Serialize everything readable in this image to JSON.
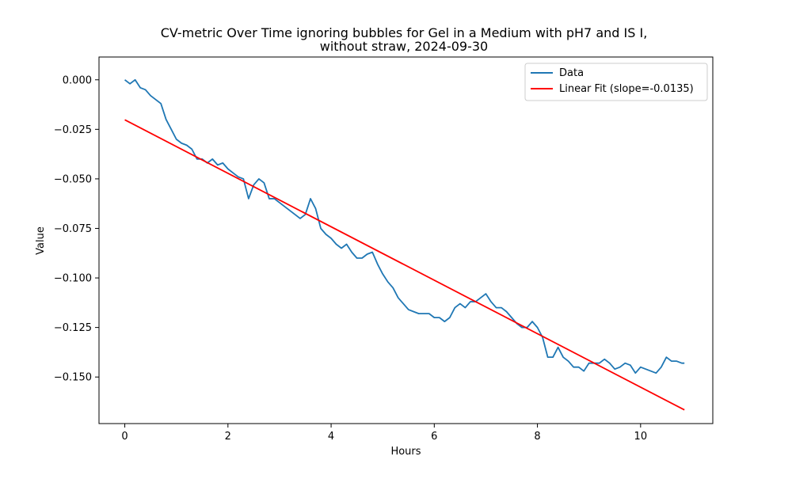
{
  "chart_data": {
    "type": "line",
    "title_line1": "CV-metric Over Time ignoring bubbles for Gel in a Medium with pH7 and IS I,",
    "title_line2": "without straw, 2024-09-30",
    "xlabel": "Hours",
    "ylabel": "Value",
    "xlim": [
      -0.5,
      11.4
    ],
    "ylim": [
      -0.1735,
      0.0115
    ],
    "x_ticks": [
      0,
      2,
      4,
      6,
      8,
      10
    ],
    "x_tick_labels": [
      "0",
      "2",
      "4",
      "6",
      "8",
      "10"
    ],
    "y_ticks": [
      0.0,
      -0.025,
      -0.05,
      -0.075,
      -0.1,
      -0.125,
      -0.15
    ],
    "y_tick_labels": [
      "0.000",
      "−0.025",
      "−0.050",
      "−0.075",
      "−0.100",
      "−0.125",
      "−0.150"
    ],
    "grid": false,
    "legend_position": "top-right",
    "series": [
      {
        "name": "Data",
        "color": "#1f77b4",
        "x": [
          0,
          0.1,
          0.2,
          0.3,
          0.4,
          0.5,
          0.6,
          0.7,
          0.8,
          0.9,
          1.0,
          1.1,
          1.2,
          1.3,
          1.4,
          1.5,
          1.6,
          1.7,
          1.8,
          1.9,
          2.0,
          2.1,
          2.2,
          2.3,
          2.4,
          2.5,
          2.6,
          2.7,
          2.8,
          2.9,
          3.0,
          3.1,
          3.2,
          3.3,
          3.4,
          3.5,
          3.6,
          3.7,
          3.8,
          3.9,
          4.0,
          4.1,
          4.2,
          4.3,
          4.4,
          4.5,
          4.6,
          4.7,
          4.8,
          4.9,
          5.0,
          5.1,
          5.2,
          5.3,
          5.4,
          5.5,
          5.6,
          5.7,
          5.8,
          5.9,
          6.0,
          6.1,
          6.2,
          6.3,
          6.4,
          6.5,
          6.6,
          6.7,
          6.8,
          6.9,
          7.0,
          7.1,
          7.2,
          7.3,
          7.4,
          7.5,
          7.6,
          7.7,
          7.8,
          7.9,
          8.0,
          8.1,
          8.2,
          8.3,
          8.4,
          8.5,
          8.6,
          8.7,
          8.8,
          8.9,
          9.0,
          9.1,
          9.2,
          9.3,
          9.4,
          9.5,
          9.6,
          9.7,
          9.8,
          9.9,
          10.0,
          10.1,
          10.2,
          10.3,
          10.4,
          10.5,
          10.6,
          10.7,
          10.8,
          10.85
        ],
        "y": [
          0.0,
          -0.002,
          0.0,
          -0.004,
          -0.005,
          -0.008,
          -0.01,
          -0.012,
          -0.02,
          -0.025,
          -0.03,
          -0.032,
          -0.033,
          -0.035,
          -0.04,
          -0.04,
          -0.042,
          -0.04,
          -0.043,
          -0.042,
          -0.045,
          -0.047,
          -0.049,
          -0.05,
          -0.06,
          -0.053,
          -0.05,
          -0.052,
          -0.06,
          -0.06,
          -0.062,
          -0.064,
          -0.066,
          -0.068,
          -0.07,
          -0.068,
          -0.06,
          -0.065,
          -0.075,
          -0.078,
          -0.08,
          -0.083,
          -0.085,
          -0.083,
          -0.087,
          -0.09,
          -0.09,
          -0.088,
          -0.087,
          -0.093,
          -0.098,
          -0.102,
          -0.105,
          -0.11,
          -0.113,
          -0.116,
          -0.117,
          -0.118,
          -0.118,
          -0.118,
          -0.12,
          -0.12,
          -0.122,
          -0.12,
          -0.115,
          -0.113,
          -0.115,
          -0.112,
          -0.112,
          -0.11,
          -0.108,
          -0.112,
          -0.115,
          -0.115,
          -0.117,
          -0.12,
          -0.123,
          -0.125,
          -0.125,
          -0.122,
          -0.125,
          -0.13,
          -0.14,
          -0.14,
          -0.135,
          -0.14,
          -0.142,
          -0.145,
          -0.145,
          -0.147,
          -0.143,
          -0.143,
          -0.143,
          -0.141,
          -0.143,
          -0.146,
          -0.145,
          -0.143,
          -0.144,
          -0.148,
          -0.145,
          -0.146,
          -0.147,
          -0.148,
          -0.145,
          -0.14,
          -0.142,
          -0.142,
          -0.143,
          -0.143
        ]
      },
      {
        "name": "Linear Fit (slope=-0.0135)",
        "color": "#ff0000",
        "x": [
          0,
          10.85
        ],
        "y": [
          -0.0202,
          -0.1666
        ]
      }
    ]
  }
}
